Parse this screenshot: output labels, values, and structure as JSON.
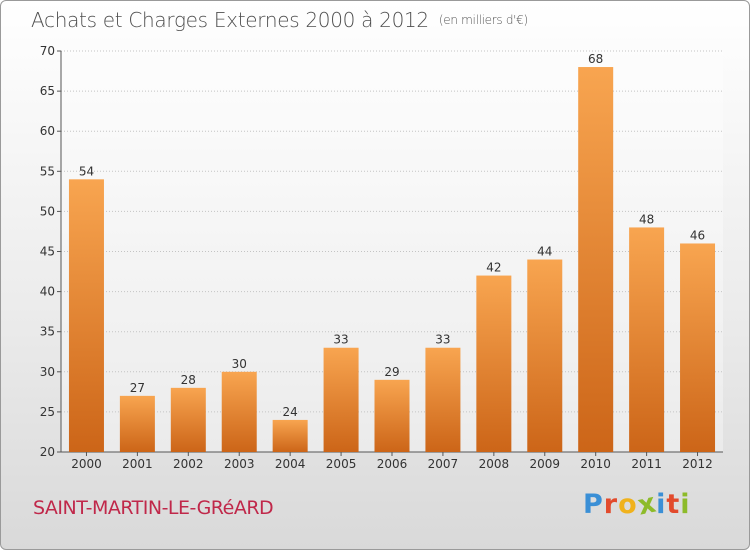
{
  "header": {
    "title": "Achats et Charges Externes 2000 à 2012",
    "unit_note": "(en milliers d'€)"
  },
  "footer": {
    "commune": "SAINT-MARTIN-LE-GRéARD",
    "logo_letters": [
      "P",
      "r",
      "o",
      "x",
      "i",
      "t",
      "i"
    ],
    "logo_colors": [
      "#3a8fd6",
      "#e24a2c",
      "#f0b21c",
      "#8dbb2a",
      "#3a8fd6",
      "#e24a2c",
      "#8dbb2a"
    ]
  },
  "chart_data": {
    "type": "bar",
    "categories": [
      "2000",
      "2001",
      "2002",
      "2003",
      "2004",
      "2005",
      "2006",
      "2007",
      "2008",
      "2009",
      "2010",
      "2011",
      "2012"
    ],
    "values": [
      54,
      27,
      28,
      30,
      24,
      33,
      29,
      33,
      42,
      44,
      68,
      48,
      46
    ],
    "ylim": [
      20,
      70
    ],
    "yticks": [
      20,
      25,
      30,
      35,
      40,
      45,
      50,
      55,
      60,
      65,
      70
    ],
    "grid": true,
    "bar_color_top": "#f8a550",
    "bar_color_bottom": "#cc6518"
  }
}
